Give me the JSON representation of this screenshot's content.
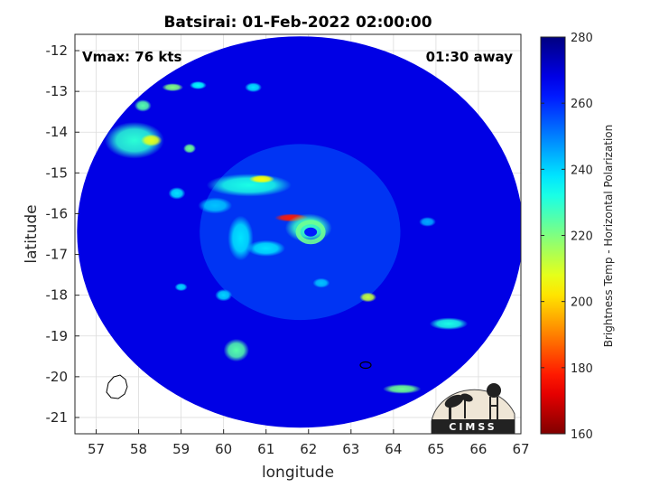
{
  "chart_data": {
    "type": "heatmap",
    "title": "Batsirai: 01-Feb-2022 02:00:00",
    "xlabel": "longitude",
    "ylabel": "latitude",
    "xlim": [
      56.5,
      67
    ],
    "ylim": [
      -21.4,
      -11.6
    ],
    "x_ticks": [
      57,
      58,
      59,
      60,
      61,
      62,
      63,
      64,
      65,
      66,
      67
    ],
    "y_ticks": [
      -12,
      -13,
      -14,
      -15,
      -16,
      -17,
      -18,
      -19,
      -20,
      -21
    ],
    "grid": true,
    "annotations": {
      "vmax": "Vmax: 76 kts",
      "time_offset": "01:30 away"
    },
    "colorbar": {
      "label": "Brightness Temp - Horizontal Polarization",
      "range": [
        160,
        280
      ],
      "ticks": [
        160,
        180,
        200,
        220,
        240,
        260,
        280
      ],
      "colormap": "jet",
      "placement": "right"
    },
    "swath": {
      "center_lon": 61.8,
      "center_lat": -16.45,
      "radius_lon": 5.25,
      "radius_lat": 4.8,
      "background_value": 268
    },
    "features": [
      {
        "lon": 61.6,
        "lat": -16.1,
        "rx": 0.4,
        "ry": 0.1,
        "value": 178
      },
      {
        "lon": 62.0,
        "lat": -16.35,
        "rx": 0.55,
        "ry": 0.35,
        "value": 228
      },
      {
        "lon": 60.6,
        "lat": -15.3,
        "rx": 1.0,
        "ry": 0.28,
        "value": 232
      },
      {
        "lon": 60.9,
        "lat": -15.15,
        "rx": 0.3,
        "ry": 0.1,
        "value": 205
      },
      {
        "lon": 60.4,
        "lat": -16.6,
        "rx": 0.3,
        "ry": 0.55,
        "value": 238
      },
      {
        "lon": 61.0,
        "lat": -16.85,
        "rx": 0.45,
        "ry": 0.2,
        "value": 238
      },
      {
        "lon": 59.8,
        "lat": -15.8,
        "rx": 0.4,
        "ry": 0.2,
        "value": 242
      },
      {
        "lon": 57.9,
        "lat": -14.2,
        "rx": 0.7,
        "ry": 0.45,
        "value": 230
      },
      {
        "lon": 58.3,
        "lat": -14.2,
        "rx": 0.25,
        "ry": 0.15,
        "value": 208
      },
      {
        "lon": 58.1,
        "lat": -13.35,
        "rx": 0.2,
        "ry": 0.15,
        "value": 225
      },
      {
        "lon": 58.8,
        "lat": -12.9,
        "rx": 0.25,
        "ry": 0.1,
        "value": 220
      },
      {
        "lon": 59.4,
        "lat": -12.85,
        "rx": 0.2,
        "ry": 0.1,
        "value": 235
      },
      {
        "lon": 59.2,
        "lat": -14.4,
        "rx": 0.15,
        "ry": 0.12,
        "value": 222
      },
      {
        "lon": 58.9,
        "lat": -15.5,
        "rx": 0.2,
        "ry": 0.15,
        "value": 238
      },
      {
        "lon": 60.3,
        "lat": -19.35,
        "rx": 0.3,
        "ry": 0.28,
        "value": 225
      },
      {
        "lon": 63.4,
        "lat": -18.05,
        "rx": 0.2,
        "ry": 0.12,
        "value": 212
      },
      {
        "lon": 64.2,
        "lat": -20.3,
        "rx": 0.45,
        "ry": 0.12,
        "value": 222
      },
      {
        "lon": 65.3,
        "lat": -18.7,
        "rx": 0.45,
        "ry": 0.15,
        "value": 232
      },
      {
        "lon": 60.7,
        "lat": -12.9,
        "rx": 0.2,
        "ry": 0.12,
        "value": 238
      },
      {
        "lon": 59.0,
        "lat": -17.8,
        "rx": 0.15,
        "ry": 0.1,
        "value": 240
      },
      {
        "lon": 60.0,
        "lat": -18.0,
        "rx": 0.2,
        "ry": 0.15,
        "value": 240
      },
      {
        "lon": 62.3,
        "lat": -17.7,
        "rx": 0.2,
        "ry": 0.12,
        "value": 242
      },
      {
        "lon": 64.8,
        "lat": -16.2,
        "rx": 0.2,
        "ry": 0.12,
        "value": 245
      }
    ]
  },
  "logo": {
    "text": "CIMSS"
  }
}
